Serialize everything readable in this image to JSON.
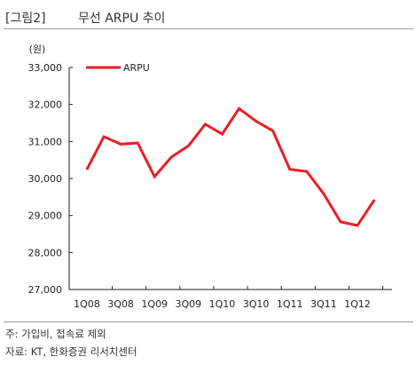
{
  "header": {
    "label": "[그림2]",
    "title": "무선 ARPU 추이"
  },
  "chart_data": {
    "type": "line",
    "unit": "(원)",
    "x": [
      "1Q08",
      "2Q08",
      "3Q08",
      "4Q08",
      "1Q09",
      "2Q09",
      "3Q09",
      "4Q09",
      "1Q10",
      "2Q10",
      "3Q10",
      "4Q10",
      "1Q11",
      "2Q11",
      "3Q11",
      "4Q11",
      "1Q12",
      "2Q12"
    ],
    "xtick_labels": [
      "1Q08",
      "3Q08",
      "1Q09",
      "3Q09",
      "1Q10",
      "3Q10",
      "1Q11",
      "3Q11",
      "1Q12"
    ],
    "series": [
      {
        "name": "ARPU",
        "color": "#ee1c25",
        "values": [
          30250,
          31130,
          30930,
          30960,
          30050,
          30580,
          30880,
          31470,
          31200,
          31890,
          31550,
          31290,
          30250,
          30190,
          29590,
          28830,
          28730,
          29420
        ]
      }
    ],
    "ylim": [
      27000,
      33000
    ],
    "yticks": [
      27000,
      28000,
      29000,
      30000,
      31000,
      32000,
      33000
    ],
    "ytick_labels": [
      "27,000",
      "28,000",
      "29,000",
      "30,000",
      "31,000",
      "32,000",
      "33,000"
    ],
    "legend_position": "top-left",
    "grid": false
  },
  "footer": {
    "note": "주: 가입비, 접속료 제외",
    "source": "자료: KT, 한화증권 리서치센터"
  }
}
